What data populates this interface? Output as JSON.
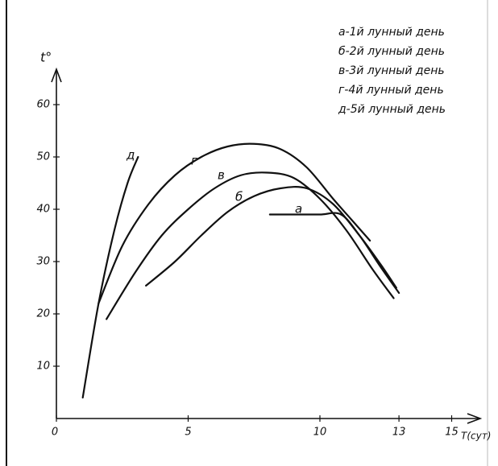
{
  "chart_data": {
    "type": "line",
    "x_label": "T(сут)",
    "y_label": "t°",
    "xlim": [
      0,
      15.5
    ],
    "ylim": [
      0,
      66
    ],
    "xticks": [
      0,
      5,
      10,
      13,
      15
    ],
    "yticks": [
      10,
      20,
      30,
      40,
      50,
      60
    ],
    "series": [
      {
        "name": "а",
        "color": "#111111",
        "x": [
          8.1,
          9,
          10,
          10.8,
          11.5,
          12.3,
          13
        ],
        "values": [
          39,
          39,
          39,
          39,
          35,
          29,
          24
        ]
      },
      {
        "name": "б",
        "color": "#111111",
        "x": [
          3.4,
          4.5,
          5.5,
          6.5,
          7.5,
          8.5,
          9.5,
          10.5,
          11.5,
          12.3,
          12.9
        ],
        "values": [
          25.4,
          30,
          35,
          39.5,
          42.5,
          44,
          44,
          41,
          35,
          29.5,
          25
        ]
      },
      {
        "name": "в",
        "color": "#111111",
        "x": [
          1.9,
          3,
          4,
          5,
          6,
          7,
          8,
          9,
          10,
          11,
          12,
          12.8
        ],
        "values": [
          19,
          28,
          35,
          40,
          44,
          46.5,
          47,
          46,
          42,
          36,
          28.5,
          23
        ]
      },
      {
        "name": "г",
        "color": "#111111",
        "x": [
          1.6,
          2.5,
          3.5,
          4.5,
          5.5,
          6.5,
          7.5,
          8.5,
          9.5,
          10.5,
          11.2,
          11.9
        ],
        "values": [
          22,
          33,
          41,
          46.5,
          50,
          52,
          52.5,
          51.5,
          48,
          42,
          38,
          34
        ]
      },
      {
        "name": "д",
        "color": "#111111",
        "x": [
          1.0,
          1.6,
          2.2,
          2.7,
          3.1
        ],
        "values": [
          4,
          22,
          36,
          45,
          50
        ]
      }
    ],
    "legend": [
      "а-1й лунный день",
      "б-2й лунный день",
      "в-3й лунный день",
      "г-4й лунный день",
      "д-5й лунный день"
    ]
  }
}
